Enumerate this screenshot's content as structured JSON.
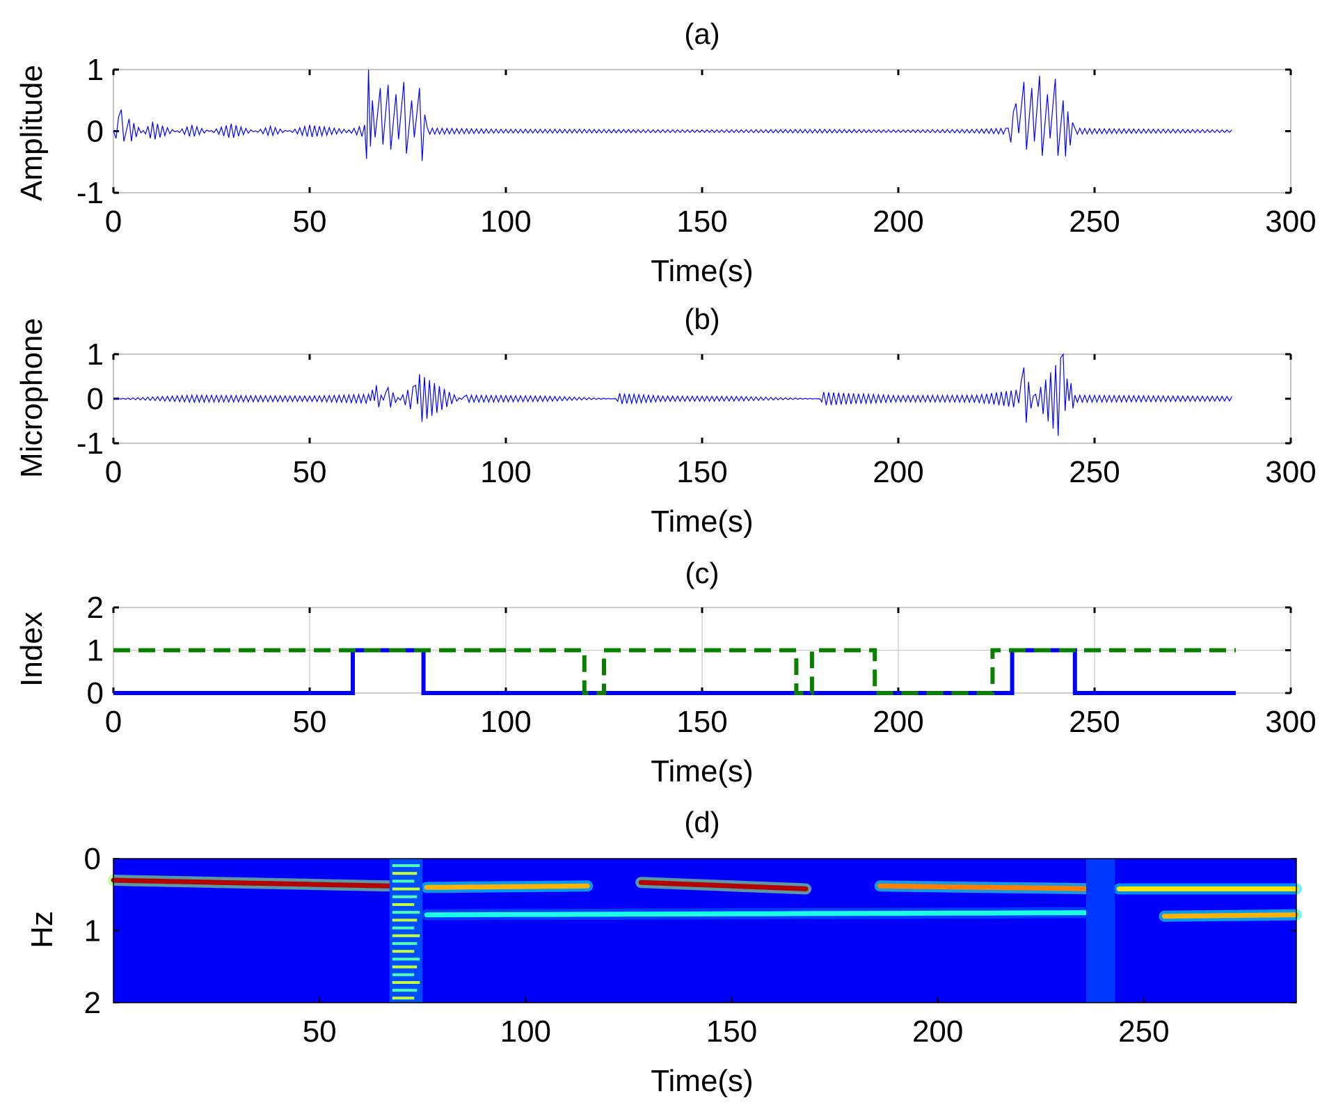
{
  "chart_data": [
    {
      "panel": "a",
      "type": "line",
      "title": "(a)",
      "xlabel": "Time(s)",
      "ylabel": "Amplitude",
      "xlim": [
        0,
        300
      ],
      "ylim": [
        -1,
        1
      ],
      "xticks": [
        "0",
        "50",
        "100",
        "150",
        "200",
        "250",
        "300"
      ],
      "yticks": [
        "-1",
        "0",
        "1"
      ],
      "grid": false,
      "color": "#0000ff",
      "series": [
        {
          "x": [
            0,
            2,
            4,
            10,
            20,
            30,
            40,
            50,
            60,
            64,
            65,
            66,
            68,
            70,
            72,
            74,
            76,
            78,
            80,
            90,
            100,
            120,
            150,
            180,
            200,
            220,
            228,
            230,
            232,
            234,
            236,
            238,
            240,
            242,
            245,
            250,
            270,
            285
          ],
          "values": [
            0,
            0.35,
            -0.2,
            0.15,
            -0.1,
            0.12,
            -0.08,
            0.1,
            0.02,
            0.1,
            -1.0,
            0.5,
            -0.7,
            0.75,
            -0.6,
            0.8,
            -0.5,
            0.7,
            0.05,
            0.04,
            0.03,
            0.03,
            0.02,
            0.03,
            0.02,
            0.03,
            0.05,
            0.45,
            -0.8,
            0.7,
            -0.9,
            0.6,
            -0.85,
            0.5,
            0.05,
            0.04,
            0.03,
            0.02
          ]
        }
      ]
    },
    {
      "panel": "b",
      "type": "line",
      "title": "(b)",
      "xlabel": "Time(s)",
      "ylabel": "Microphone",
      "xlim": [
        0,
        300
      ],
      "ylim": [
        -1,
        1
      ],
      "xticks": [
        "0",
        "50",
        "100",
        "150",
        "200",
        "250",
        "300"
      ],
      "yticks": [
        "-1",
        "0",
        "1"
      ],
      "grid": false,
      "color": "#0000ff",
      "series": [
        {
          "x": [
            0,
            20,
            50,
            65,
            66,
            67,
            70,
            75,
            77,
            78,
            90,
            110,
            128,
            129,
            140,
            160,
            180,
            181,
            200,
            220,
            230,
            232,
            235,
            242,
            243,
            244,
            245,
            260,
            285
          ],
          "values": [
            0,
            0.08,
            0.06,
            0.1,
            -0.2,
            0.3,
            -0.25,
            0.2,
            0.3,
            -0.55,
            0.08,
            0.06,
            0.0,
            0.12,
            0.06,
            0.05,
            0.0,
            0.15,
            0.07,
            0.08,
            0.2,
            -0.7,
            0.1,
            1.0,
            -0.45,
            0.35,
            0.08,
            0.07,
            0.05
          ]
        }
      ]
    },
    {
      "panel": "c",
      "type": "line",
      "title": "(c)",
      "xlabel": "Time(s)",
      "ylabel": "Index",
      "xlim": [
        0,
        300
      ],
      "ylim": [
        0,
        2
      ],
      "xticks": [
        "0",
        "50",
        "100",
        "150",
        "200",
        "250",
        "300"
      ],
      "yticks": [
        "0",
        "1",
        "2"
      ],
      "grid": true,
      "series": [
        {
          "style": "solid",
          "color": "#0000ff",
          "x": [
            0,
            61,
            61,
            79,
            79,
            229,
            229,
            245,
            245,
            286
          ],
          "values": [
            0,
            0,
            1,
            1,
            0,
            0,
            1,
            1,
            0,
            0
          ]
        },
        {
          "style": "dashed",
          "color": "#0a8000",
          "x": [
            0,
            120,
            120,
            125,
            125,
            174,
            174,
            178,
            178,
            194,
            194,
            224,
            224,
            286
          ],
          "values": [
            1,
            1,
            0,
            0,
            1,
            1,
            0,
            0,
            1,
            1,
            0,
            0,
            1,
            1
          ]
        }
      ]
    },
    {
      "panel": "d",
      "type": "heatmap",
      "title": "(d)",
      "xlabel": "Time(s)",
      "ylabel": "Hz",
      "xlim": [
        0,
        287
      ],
      "ylim": [
        0,
        2
      ],
      "xticks": [
        "50",
        "100",
        "150",
        "200",
        "250"
      ],
      "yticks": [
        "0",
        "1",
        "2"
      ],
      "colormap": "jet",
      "ridges": [
        {
          "x": [
            0,
            67
          ],
          "y": [
            0.3,
            0.38
          ],
          "level": 0.95
        },
        {
          "x": [
            76,
            115
          ],
          "y": [
            0.4,
            0.38
          ],
          "level": 0.7
        },
        {
          "x": [
            128,
            168
          ],
          "y": [
            0.33,
            0.42
          ],
          "level": 0.95
        },
        {
          "x": [
            186,
            240
          ],
          "y": [
            0.38,
            0.42
          ],
          "level": 0.75
        },
        {
          "x": [
            244,
            287
          ],
          "y": [
            0.42,
            0.42
          ],
          "level": 0.65
        },
        {
          "x": [
            255,
            287
          ],
          "y": [
            0.8,
            0.78
          ],
          "level": 0.7
        },
        {
          "x": [
            76,
            240
          ],
          "y": [
            0.78,
            0.75
          ],
          "level": 0.4
        }
      ],
      "bands": [
        {
          "x": [
            67,
            75
          ],
          "kind": "ladder"
        },
        {
          "x": [
            236,
            243
          ],
          "kind": "dark"
        }
      ]
    }
  ]
}
